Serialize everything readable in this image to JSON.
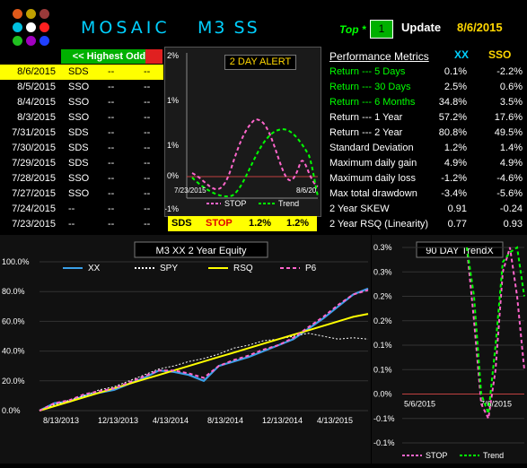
{
  "header": {
    "title": "MOSAIC",
    "subtitle": "M3  SS",
    "top_label": "Top *",
    "top_value": "1",
    "update_label": "Update",
    "update_date": "8/6/2015"
  },
  "odds_table": {
    "header": "<< Highest Odds",
    "rows": [
      {
        "date": "8/6/2015",
        "sym": "SDS",
        "a": "--",
        "b": "--"
      },
      {
        "date": "8/5/2015",
        "sym": "SSO",
        "a": "--",
        "b": "--"
      },
      {
        "date": "8/4/2015",
        "sym": "SSO",
        "a": "--",
        "b": "--"
      },
      {
        "date": "8/3/2015",
        "sym": "SSO",
        "a": "--",
        "b": "--"
      },
      {
        "date": "7/31/2015",
        "sym": "SDS",
        "a": "--",
        "b": "--"
      },
      {
        "date": "7/30/2015",
        "sym": "SDS",
        "a": "--",
        "b": "--"
      },
      {
        "date": "7/29/2015",
        "sym": "SDS",
        "a": "--",
        "b": "--"
      },
      {
        "date": "7/28/2015",
        "sym": "SSO",
        "a": "--",
        "b": "--"
      },
      {
        "date": "7/27/2015",
        "sym": "SSO",
        "a": "--",
        "b": "--"
      },
      {
        "date": "7/24/2015",
        "sym": "--",
        "a": "--",
        "b": "--"
      },
      {
        "date": "7/23/2015",
        "sym": "--",
        "a": "--",
        "b": "--"
      }
    ]
  },
  "alert": {
    "title": "2 DAY  ALERT",
    "y_ticks": [
      "2%",
      "1%",
      "1%",
      "0%",
      "-1%"
    ],
    "x_start": "7/23/2015",
    "x_end": "8/6/20",
    "legend_stop": "STOP",
    "legend_trend": "Trend",
    "footer": {
      "sym": "SDS",
      "action": "STOP",
      "v1": "1.2%",
      "v2": "1.2%"
    }
  },
  "metrics": {
    "header": "Performance Metrics",
    "col1": "XX",
    "col2": "SSO",
    "rows": [
      {
        "label": "Return --- 5 Days",
        "v1": "0.1%",
        "v2": "-2.2%",
        "green": true
      },
      {
        "label": "Return --- 30 Days",
        "v1": "2.5%",
        "v2": "0.6%",
        "green": true
      },
      {
        "label": "Return --- 6 Months",
        "v1": "34.8%",
        "v2": "3.5%",
        "green": true
      },
      {
        "label": "Return --- 1 Year",
        "v1": "57.2%",
        "v2": "17.6%",
        "green": false
      },
      {
        "label": "Return --- 2 Year",
        "v1": "80.8%",
        "v2": "49.5%",
        "green": false
      },
      {
        "label": "Standard Deviation",
        "v1": "1.2%",
        "v2": "1.4%",
        "green": false
      },
      {
        "label": "Maximum daily gain",
        "v1": "4.9%",
        "v2": "4.9%",
        "green": false
      },
      {
        "label": "Maximum daily loss",
        "v1": "-1.2%",
        "v2": "-4.6%",
        "green": false
      },
      {
        "label": "Max total drawdown",
        "v1": "-3.4%",
        "v2": "-5.6%",
        "green": false
      },
      {
        "label": "2 Year SKEW",
        "v1": "0.91",
        "v2": "-0.24",
        "green": false
      },
      {
        "label": "2 Year RSQ  (Linearity)",
        "v1": "0.77",
        "v2": "0.93",
        "green": false
      }
    ]
  },
  "chart_data": [
    {
      "type": "line",
      "title": "M3  XX  2 Year  Equity",
      "legend": [
        "XX",
        "SPY",
        "RSQ",
        "P6"
      ],
      "y_ticks": [
        "100.0%",
        "80.0%",
        "60.0%",
        "40.0%",
        "20.0%",
        "0.0%"
      ],
      "x_ticks": [
        "8/13/2013",
        "12/13/2013",
        "4/13/2014",
        "8/13/2014",
        "12/13/2014",
        "4/13/2015"
      ],
      "ylim": [
        0,
        100
      ],
      "series": [
        {
          "name": "XX",
          "color": "#3aa0e8",
          "values": [
            0,
            5,
            6,
            10,
            12,
            14,
            18,
            22,
            27,
            26,
            24,
            20,
            30,
            33,
            36,
            40,
            44,
            48,
            55,
            62,
            70,
            78,
            82
          ]
        },
        {
          "name": "SPY",
          "color": "#ffffff",
          "values": [
            0,
            4,
            7,
            10,
            14,
            16,
            20,
            24,
            28,
            30,
            33,
            35,
            38,
            42,
            44,
            47,
            48,
            50,
            52,
            50,
            48,
            49,
            48
          ]
        },
        {
          "name": "RSQ",
          "color": "#ffff00",
          "values": [
            0,
            3,
            6,
            9,
            12,
            15,
            18,
            21,
            24,
            27,
            30,
            33,
            36,
            39,
            42,
            45,
            48,
            51,
            54,
            57,
            60,
            63,
            65
          ]
        },
        {
          "name": "P6",
          "color": "#ff66cc",
          "values": [
            0,
            5,
            7,
            11,
            13,
            15,
            19,
            23,
            27,
            27,
            25,
            22,
            30,
            34,
            37,
            41,
            44,
            49,
            56,
            63,
            71,
            78,
            81
          ]
        }
      ]
    },
    {
      "type": "line",
      "title": "90 DAY  TrendX",
      "y_ticks": [
        "0.3%",
        "0.3%",
        "0.2%",
        "0.2%",
        "0.1%",
        "0.1%",
        "0.0%",
        "-0.1%",
        "-0.1%"
      ],
      "x_ticks": [
        "5/6/2015",
        "7/6/2015"
      ],
      "legend": [
        "STOP",
        "Trend"
      ],
      "series": [
        {
          "name": "STOP",
          "color": "#ff66cc",
          "values": [
            0.3,
            0.15,
            -0.02,
            -0.05,
            0.05,
            0.25,
            0.3,
            0.2,
            0.05
          ]
        },
        {
          "name": "Trend",
          "color": "#00ff00",
          "values": [
            0.3,
            0.2,
            0.0,
            -0.04,
            0.1,
            0.27,
            0.29,
            0.3,
            0.2
          ]
        }
      ]
    }
  ]
}
